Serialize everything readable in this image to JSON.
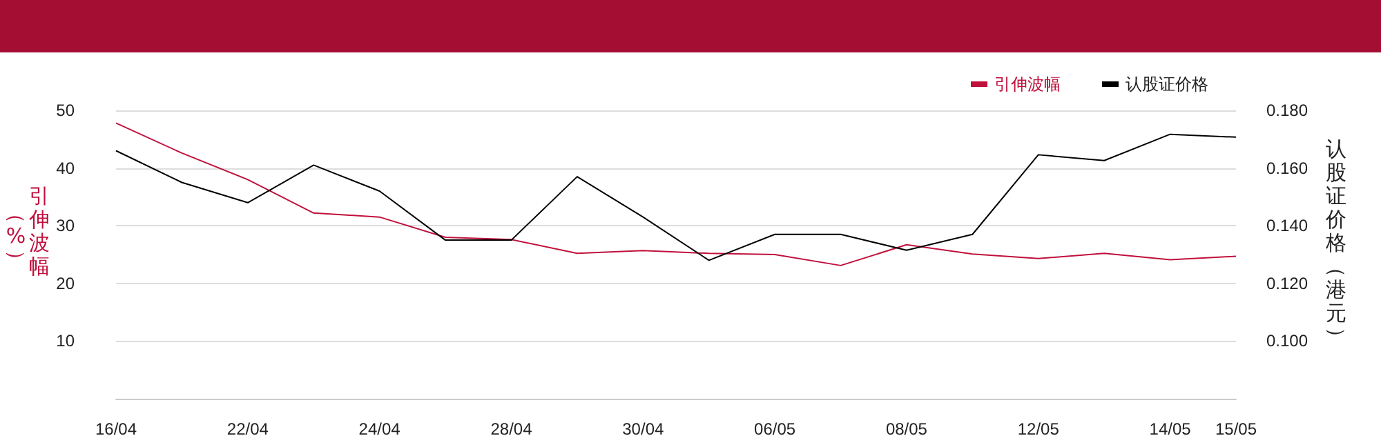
{
  "chart_data": {
    "type": "line",
    "ylabel": "引伸波幅（%）",
    "y2label": "认股证价格（港元）",
    "categories": [
      "16/04",
      null,
      "22/04",
      null,
      "24/04",
      null,
      "28/04",
      null,
      "30/04",
      null,
      "06/05",
      null,
      "08/05",
      null,
      "12/05",
      null,
      "14/05",
      "15/05"
    ],
    "series": [
      {
        "name": "引伸波幅",
        "color": "#c0103c",
        "values": [
          47.8,
          42.6,
          38.0,
          32.2,
          31.5,
          28.0,
          27.6,
          25.2,
          25.7,
          25.2,
          25.0,
          23.1,
          26.7,
          25.1,
          24.3,
          25.2,
          24.1,
          24.7
        ]
      },
      {
        "name": "认股证价格",
        "color": "#000000",
        "axis": "y2",
        "values": [
          0.166,
          0.155,
          0.148,
          0.161,
          0.152,
          0.135,
          0.135,
          0.157,
          0.143,
          0.128,
          0.137,
          0.137,
          0.1315,
          0.137,
          0.1646,
          0.1626,
          0.1717,
          0.1707
        ]
      }
    ],
    "ylim": [
      0,
      50
    ],
    "yticks": [
      10,
      20,
      30,
      40,
      50
    ],
    "y2lim": [
      0.08,
      0.18
    ],
    "y2ticks": [
      {
        "value": 0.1,
        "label": "0.100"
      },
      {
        "value": 0.12,
        "label": "0.120"
      },
      {
        "value": 0.14,
        "label": "0.140"
      },
      {
        "value": 0.16,
        "label": "0.160"
      },
      {
        "value": 0.18,
        "label": "0.180"
      }
    ],
    "grid": "y",
    "legend": "top right",
    "marker": "none",
    "line_style": "solid"
  }
}
